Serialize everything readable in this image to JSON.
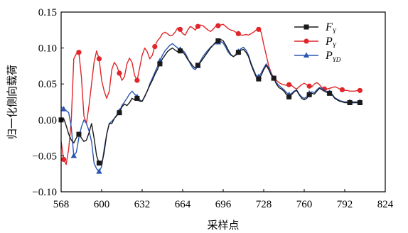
{
  "chart_data": {
    "type": "line",
    "xlabel": "采样点",
    "ylabel": "归一化侧向载荷",
    "xlim": [
      568,
      824
    ],
    "ylim": [
      -0.1,
      0.15
    ],
    "xticks": [
      "568",
      "600",
      "632",
      "664",
      "696",
      "728",
      "760",
      "792",
      "824"
    ],
    "yticks": [
      "−0.10",
      "−0.05",
      "0.00",
      "0.05",
      "0.10",
      "0.15"
    ],
    "grid": false,
    "legend_position": "top-right",
    "series": [
      {
        "name": "F",
        "sub": "Y",
        "color": "#1a1a1a",
        "marker": "square",
        "x": [
          568,
          570,
          572,
          574,
          576,
          578,
          580,
          582,
          584,
          586,
          588,
          590,
          592,
          594,
          596,
          598,
          600,
          602,
          604,
          606,
          608,
          610,
          612,
          614,
          616,
          618,
          620,
          622,
          624,
          626,
          628,
          630,
          632,
          634,
          636,
          638,
          640,
          642,
          644,
          646,
          648,
          650,
          652,
          654,
          656,
          658,
          660,
          662,
          664,
          666,
          668,
          670,
          672,
          674,
          676,
          678,
          680,
          682,
          684,
          686,
          688,
          690,
          692,
          694,
          696,
          698,
          700,
          702,
          704,
          706,
          708,
          710,
          712,
          714,
          716,
          718,
          720,
          722,
          724,
          726,
          728,
          730,
          732,
          734,
          736,
          738,
          740,
          742,
          744,
          746,
          748,
          750,
          752,
          754,
          756,
          758,
          760,
          762,
          764,
          766,
          768,
          770,
          772,
          774,
          776,
          778,
          780,
          782,
          784,
          786,
          788,
          790,
          792,
          794,
          796,
          798,
          800,
          802,
          804
        ],
        "y": [
          0.0,
          0.002,
          -0.008,
          -0.02,
          -0.028,
          -0.032,
          -0.025,
          -0.02,
          -0.025,
          -0.03,
          -0.028,
          -0.018,
          -0.005,
          -0.025,
          -0.05,
          -0.06,
          -0.062,
          -0.045,
          -0.02,
          -0.005,
          -0.005,
          0.002,
          0.006,
          0.01,
          0.018,
          0.022,
          0.02,
          0.024,
          0.03,
          0.028,
          0.03,
          0.026,
          0.026,
          0.033,
          0.04,
          0.048,
          0.055,
          0.063,
          0.07,
          0.078,
          0.085,
          0.09,
          0.095,
          0.098,
          0.1,
          0.097,
          0.095,
          0.096,
          0.095,
          0.09,
          0.084,
          0.08,
          0.075,
          0.072,
          0.076,
          0.08,
          0.085,
          0.09,
          0.095,
          0.1,
          0.104,
          0.108,
          0.11,
          0.112,
          0.11,
          0.104,
          0.097,
          0.091,
          0.088,
          0.09,
          0.094,
          0.097,
          0.098,
          0.094,
          0.088,
          0.077,
          0.068,
          0.06,
          0.057,
          0.062,
          0.07,
          0.076,
          0.07,
          0.062,
          0.058,
          0.05,
          0.045,
          0.043,
          0.04,
          0.035,
          0.032,
          0.035,
          0.039,
          0.041,
          0.035,
          0.03,
          0.028,
          0.03,
          0.035,
          0.037,
          0.036,
          0.04,
          0.044,
          0.042,
          0.04,
          0.038,
          0.037,
          0.035,
          0.03,
          0.028,
          0.026,
          0.025,
          0.024,
          0.024,
          0.024,
          0.024,
          0.024,
          0.024,
          0.024
        ]
      },
      {
        "name": "P",
        "sub": "Y",
        "color": "#e0262b",
        "marker": "circle",
        "x": [
          568,
          570,
          572,
          574,
          576,
          578,
          580,
          582,
          584,
          586,
          588,
          590,
          592,
          594,
          596,
          598,
          600,
          602,
          604,
          606,
          608,
          610,
          612,
          614,
          616,
          618,
          620,
          622,
          624,
          626,
          628,
          630,
          632,
          634,
          636,
          638,
          640,
          642,
          644,
          646,
          648,
          650,
          652,
          654,
          656,
          658,
          660,
          662,
          664,
          666,
          668,
          670,
          672,
          674,
          676,
          678,
          680,
          682,
          684,
          686,
          688,
          690,
          692,
          694,
          696,
          698,
          700,
          702,
          704,
          706,
          708,
          710,
          712,
          714,
          716,
          718,
          720,
          722,
          724,
          726,
          728,
          730,
          732,
          734,
          736,
          738,
          740,
          742,
          744,
          746,
          748,
          750,
          752,
          754,
          756,
          758,
          760,
          762,
          764,
          766,
          768,
          770,
          772,
          774,
          776,
          778,
          780,
          782,
          784,
          786,
          788,
          790,
          792,
          794,
          796,
          798,
          800,
          802,
          804
        ],
        "y": [
          -0.03,
          -0.055,
          -0.062,
          -0.04,
          0.0,
          0.085,
          0.092,
          0.094,
          0.06,
          0.005,
          -0.005,
          0.02,
          0.05,
          0.08,
          0.096,
          0.085,
          0.055,
          0.04,
          0.03,
          0.04,
          0.07,
          0.08,
          0.075,
          0.065,
          0.055,
          0.06,
          0.078,
          0.086,
          0.08,
          0.062,
          0.055,
          0.072,
          0.09,
          0.1,
          0.095,
          0.085,
          0.09,
          0.102,
          0.11,
          0.114,
          0.12,
          0.122,
          0.12,
          0.117,
          0.118,
          0.122,
          0.128,
          0.126,
          0.12,
          0.118,
          0.125,
          0.13,
          0.128,
          0.125,
          0.13,
          0.132,
          0.131,
          0.128,
          0.125,
          0.123,
          0.126,
          0.13,
          0.131,
          0.132,
          0.133,
          0.13,
          0.127,
          0.125,
          0.124,
          0.122,
          0.12,
          0.118,
          0.118,
          0.119,
          0.118,
          0.12,
          0.122,
          0.125,
          0.126,
          0.122,
          0.105,
          0.09,
          0.075,
          0.065,
          0.058,
          0.055,
          0.052,
          0.05,
          0.049,
          0.048,
          0.049,
          0.048,
          0.045,
          0.043,
          0.046,
          0.049,
          0.051,
          0.049,
          0.047,
          0.046,
          0.05,
          0.052,
          0.049,
          0.045,
          0.043,
          0.043,
          0.044,
          0.045,
          0.046,
          0.045,
          0.043,
          0.042,
          0.041,
          0.041,
          0.04,
          0.04,
          0.04,
          0.041,
          0.041
        ]
      },
      {
        "name": "P",
        "sub": "YD",
        "color": "#2b56b4",
        "marker": "triangle",
        "x": [
          568,
          570,
          572,
          574,
          576,
          578,
          580,
          582,
          584,
          586,
          588,
          590,
          592,
          594,
          596,
          598,
          600,
          602,
          604,
          606,
          608,
          610,
          612,
          614,
          616,
          618,
          620,
          622,
          624,
          626,
          628,
          630,
          632,
          634,
          636,
          638,
          640,
          642,
          644,
          646,
          648,
          650,
          652,
          654,
          656,
          658,
          660,
          662,
          664,
          666,
          668,
          670,
          672,
          674,
          676,
          678,
          680,
          682,
          684,
          686,
          688,
          690,
          692,
          694,
          696,
          698,
          700,
          702,
          704,
          706,
          708,
          710,
          712,
          714,
          716,
          718,
          720,
          722,
          724,
          726,
          728,
          730,
          732,
          734,
          736,
          738,
          740,
          742,
          744,
          746,
          748,
          750,
          752,
          754,
          756,
          758,
          760,
          762,
          764,
          766,
          768,
          770,
          772,
          774,
          776,
          778,
          780,
          782,
          784,
          786,
          788,
          790,
          792,
          794,
          796,
          798,
          800,
          802,
          804
        ],
        "y": [
          0.018,
          0.015,
          0.013,
          0.01,
          -0.01,
          -0.05,
          -0.045,
          -0.025,
          -0.01,
          0.0,
          -0.005,
          -0.015,
          -0.03,
          -0.06,
          -0.068,
          -0.072,
          -0.065,
          -0.04,
          -0.02,
          -0.005,
          -0.002,
          0.002,
          0.007,
          0.012,
          0.02,
          0.025,
          0.03,
          0.036,
          0.04,
          0.036,
          0.032,
          0.028,
          0.026,
          0.032,
          0.04,
          0.05,
          0.058,
          0.066,
          0.074,
          0.082,
          0.09,
          0.096,
          0.1,
          0.104,
          0.106,
          0.103,
          0.1,
          0.098,
          0.097,
          0.093,
          0.086,
          0.078,
          0.072,
          0.07,
          0.075,
          0.082,
          0.088,
          0.093,
          0.097,
          0.101,
          0.104,
          0.107,
          0.108,
          0.109,
          0.107,
          0.101,
          0.094,
          0.09,
          0.088,
          0.091,
          0.095,
          0.099,
          0.101,
          0.097,
          0.09,
          0.079,
          0.07,
          0.062,
          0.06,
          0.065,
          0.072,
          0.078,
          0.072,
          0.064,
          0.058,
          0.052,
          0.048,
          0.045,
          0.042,
          0.038,
          0.035,
          0.037,
          0.04,
          0.042,
          0.036,
          0.032,
          0.03,
          0.032,
          0.037,
          0.039,
          0.038,
          0.042,
          0.045,
          0.044,
          0.041,
          0.039,
          0.038,
          0.036,
          0.031,
          0.029,
          0.027,
          0.026,
          0.025,
          0.025,
          0.025,
          0.025,
          0.025,
          0.025,
          0.025
        ]
      }
    ],
    "marker_x": [
      [
        568,
        582,
        598,
        614,
        628,
        646,
        662,
        676,
        692,
        708,
        724,
        736,
        748,
        764,
        780,
        796,
        804
      ],
      [
        570,
        582,
        598,
        614,
        628,
        642,
        662,
        676,
        692,
        708,
        724,
        736,
        748,
        764,
        776,
        790,
        804
      ],
      [
        570,
        578,
        598,
        614,
        628,
        646,
        662,
        676,
        692,
        708,
        724,
        736,
        748,
        764,
        780,
        796,
        804
      ]
    ]
  }
}
